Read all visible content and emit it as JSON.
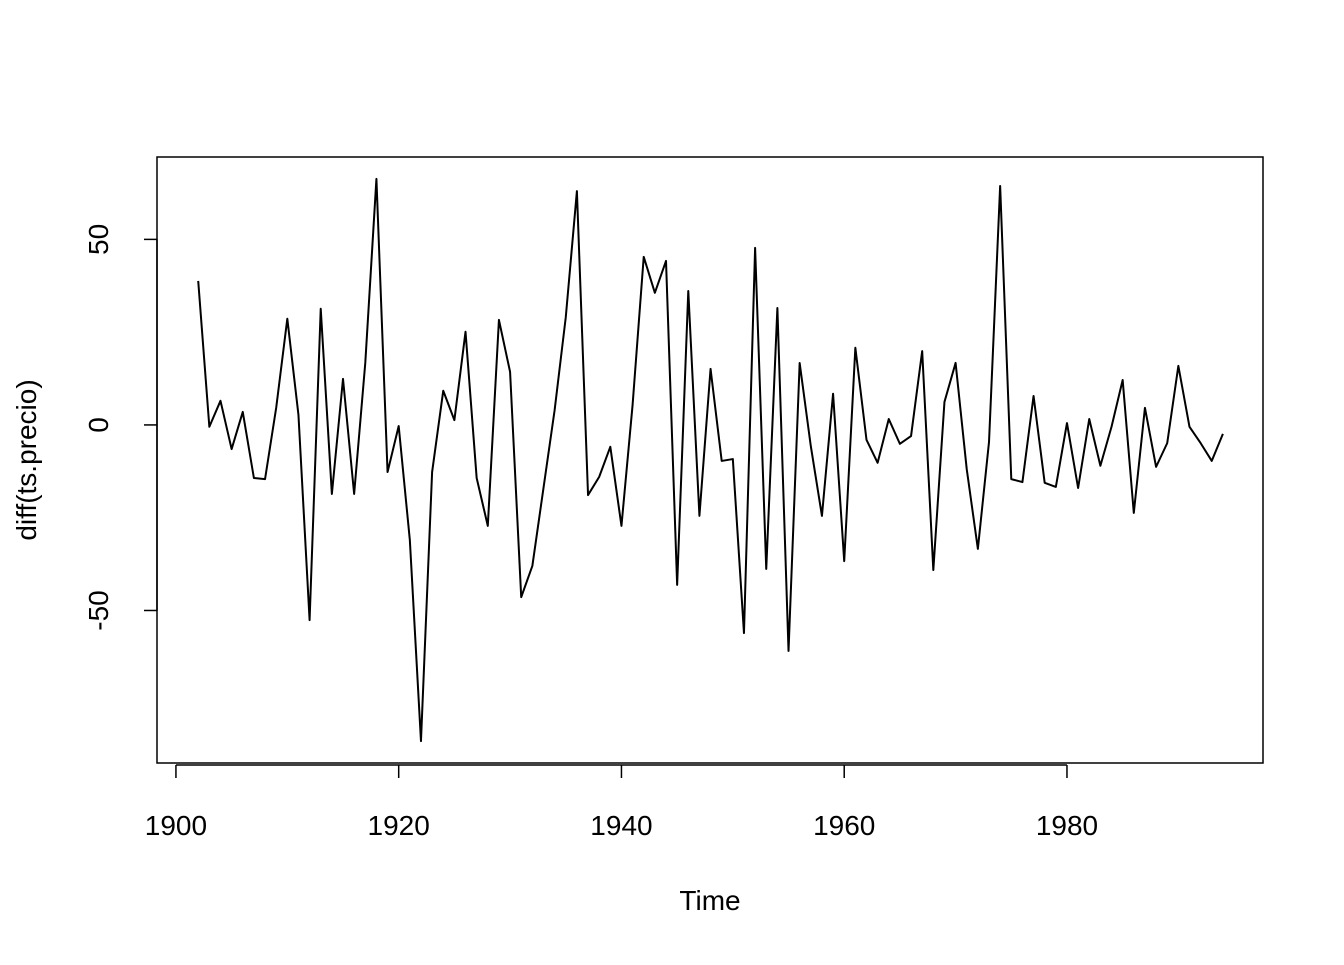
{
  "chart_data": {
    "type": "line",
    "x_label": "Time",
    "y_label": "diff(ts.precio)",
    "color": "#000000",
    "x": [
      1902,
      1903,
      1904,
      1905,
      1906,
      1907,
      1908,
      1909,
      1910,
      1911,
      1912,
      1913,
      1914,
      1915,
      1916,
      1917,
      1918,
      1919,
      1920,
      1921,
      1922,
      1923,
      1924,
      1925,
      1926,
      1927,
      1928,
      1929,
      1930,
      1931,
      1932,
      1933,
      1934,
      1935,
      1936,
      1937,
      1938,
      1939,
      1940,
      1941,
      1942,
      1943,
      1944,
      1945,
      1946,
      1947,
      1948,
      1949,
      1950,
      1951,
      1952,
      1953,
      1954,
      1955,
      1956,
      1957,
      1958,
      1959,
      1960,
      1961,
      1962,
      1963,
      1964,
      1965,
      1966,
      1967,
      1968,
      1969,
      1970,
      1971,
      1972,
      1973,
      1974,
      1975,
      1976,
      1977,
      1978,
      1979,
      1980,
      1981,
      1982,
      1983,
      1984,
      1985,
      1986,
      1987,
      1988,
      1989,
      1990,
      1991,
      1992,
      1993,
      1994
    ],
    "values": [
      38.8,
      -0.5,
      6.5,
      -6.5,
      3.5,
      -14.3,
      -14.6,
      4.6,
      28.6,
      2.7,
      -52.6,
      31.3,
      -18.6,
      12.4,
      -18.6,
      16.7,
      66.3,
      -12.7,
      -0.3,
      -31,
      -85.2,
      -12.7,
      9.2,
      1.3,
      25.1,
      -14.3,
      -27.2,
      28.3,
      14.3,
      -46.4,
      -38,
      -17,
      4,
      29,
      63,
      -18.9,
      -14,
      -5.9,
      -27.2,
      5.4,
      45.3,
      35.6,
      44.2,
      -43.1,
      36.1,
      -24.5,
      15.1,
      -9.7,
      -9.2,
      -56.1,
      47.7,
      -38.8,
      31.5,
      -60.9,
      16.7,
      -5.7,
      -24.5,
      8.4,
      -36.7,
      20.8,
      -4,
      -10.2,
      1.6,
      -5.1,
      -3,
      19.9,
      -39.1,
      6.2,
      16.7,
      -11.9,
      -33.4,
      -4.6,
      64.4,
      -14.6,
      -15.4,
      7.8,
      -15.6,
      -16.7,
      0.5,
      -17,
      1.6,
      -11,
      -0.5,
      12.1,
      -23.7,
      4.6,
      -11.3,
      -4.9,
      15.9,
      -0.5,
      -4.9,
      -9.7,
      -2.4
    ],
    "xlim": [
      1898.3,
      1997.6
    ],
    "ylim": [
      -91.1,
      72.2
    ],
    "xticks": [
      1900,
      1920,
      1940,
      1960,
      1980
    ],
    "yticks": [
      -50,
      0,
      50
    ]
  }
}
